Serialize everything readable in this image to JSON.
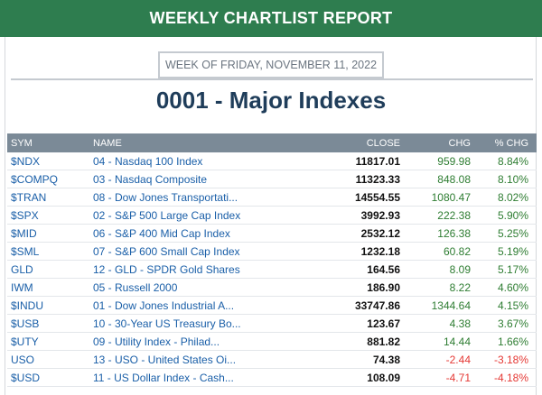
{
  "banner": {
    "title": "WEEKLY CHARTLIST REPORT",
    "color": "#2e7d4f"
  },
  "week_label": "WEEK OF FRIDAY, NOVEMBER 11, 2022",
  "page_title": "0001 - Major Indexes",
  "table": {
    "columns": [
      "SYM",
      "NAME",
      "CLOSE",
      "CHG",
      "% CHG"
    ],
    "rows": [
      {
        "sym": "$NDX",
        "name": "04 - Nasdaq 100 Index",
        "close": "11817.01",
        "chg": "959.98",
        "pct": "8.84%",
        "dir": "pos"
      },
      {
        "sym": "$COMPQ",
        "name": "03 - Nasdaq Composite",
        "close": "11323.33",
        "chg": "848.08",
        "pct": "8.10%",
        "dir": "pos"
      },
      {
        "sym": "$TRAN",
        "name": "08 - Dow Jones Transportati...",
        "close": "14554.55",
        "chg": "1080.47",
        "pct": "8.02%",
        "dir": "pos"
      },
      {
        "sym": "$SPX",
        "name": "02 - S&P 500 Large Cap Index",
        "close": "3992.93",
        "chg": "222.38",
        "pct": "5.90%",
        "dir": "pos"
      },
      {
        "sym": "$MID",
        "name": "06 - S&P 400 Mid Cap Index",
        "close": "2532.12",
        "chg": "126.38",
        "pct": "5.25%",
        "dir": "pos"
      },
      {
        "sym": "$SML",
        "name": "07 - S&P 600 Small Cap Index",
        "close": "1232.18",
        "chg": "60.82",
        "pct": "5.19%",
        "dir": "pos"
      },
      {
        "sym": "GLD",
        "name": "12 - GLD - SPDR Gold Shares",
        "close": "164.56",
        "chg": "8.09",
        "pct": "5.17%",
        "dir": "pos"
      },
      {
        "sym": "IWM",
        "name": "05 - Russell 2000",
        "close": "186.90",
        "chg": "8.22",
        "pct": "4.60%",
        "dir": "pos"
      },
      {
        "sym": "$INDU",
        "name": "01 - Dow Jones Industrial A...",
        "close": "33747.86",
        "chg": "1344.64",
        "pct": "4.15%",
        "dir": "pos"
      },
      {
        "sym": "$USB",
        "name": "10 - 30-Year US Treasury Bo...",
        "close": "123.67",
        "chg": "4.38",
        "pct": "3.67%",
        "dir": "pos"
      },
      {
        "sym": "$UTY",
        "name": "09 - Utility Index - Philad...",
        "close": "881.82",
        "chg": "14.44",
        "pct": "1.66%",
        "dir": "pos"
      },
      {
        "sym": "USO",
        "name": "13 - USO - United States Oi...",
        "close": "74.38",
        "chg": "-2.44",
        "pct": "-3.18%",
        "dir": "neg"
      },
      {
        "sym": "$USD",
        "name": "11 - US Dollar Index - Cash...",
        "close": "108.09",
        "chg": "-4.71",
        "pct": "-4.18%",
        "dir": "neg"
      }
    ]
  }
}
